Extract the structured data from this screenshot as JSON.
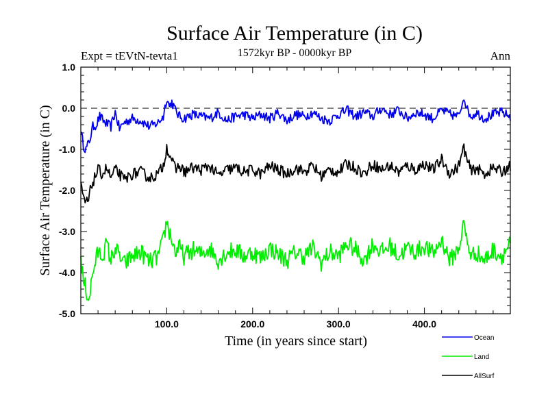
{
  "chart_data": {
    "type": "line",
    "title": "Surface Air Temperature (in C)",
    "subtitle": "1572kyr BP - 0000kyr BP",
    "left_annotation": "Expt = tEVtN-tevta1",
    "right_annotation": "Ann",
    "xlabel": "Time (in years since start)",
    "ylabel": "Surface Air Temperature (in C)",
    "xlim": [
      0,
      500
    ],
    "ylim": [
      -5.0,
      1.0
    ],
    "x_ticks": [
      100,
      200,
      300,
      400
    ],
    "x_tick_labels": [
      "100.0",
      "200.0",
      "300.0",
      "400.0"
    ],
    "y_ticks": [
      1.0,
      0.0,
      -1.0,
      -2.0,
      -3.0,
      -4.0,
      -5.0
    ],
    "y_tick_labels": [
      "1.0",
      "0.0",
      "-1.0",
      "-2.0",
      "-3.0",
      "-4.0",
      "-5.0"
    ],
    "reference_line": {
      "y": 0.0,
      "style": "dashed"
    },
    "legend_position": "bottom-right",
    "series": [
      {
        "name": "Ocean",
        "color": "#0000ee",
        "anchors": {
          "x": [
            0,
            3,
            6,
            10,
            14,
            18,
            22,
            28,
            35,
            40,
            45,
            50,
            60,
            70,
            80,
            90,
            96,
            100,
            103,
            106,
            110,
            115,
            120,
            130,
            140,
            150,
            160,
            170,
            180,
            190,
            200,
            210,
            220,
            230,
            240,
            250,
            260,
            270,
            280,
            290,
            300,
            310,
            320,
            330,
            340,
            350,
            360,
            370,
            380,
            390,
            400,
            410,
            420,
            430,
            440,
            446,
            450,
            455,
            460,
            470,
            480,
            490,
            500
          ],
          "y": [
            -0.55,
            -0.9,
            -1.0,
            -0.8,
            -0.45,
            -0.4,
            -0.2,
            -0.35,
            -0.45,
            -0.1,
            -0.5,
            -0.35,
            -0.25,
            -0.3,
            -0.45,
            -0.35,
            -0.2,
            0.25,
            0.05,
            0.15,
            -0.05,
            -0.2,
            -0.25,
            -0.15,
            -0.2,
            -0.25,
            -0.1,
            -0.3,
            -0.2,
            -0.15,
            -0.25,
            -0.15,
            -0.25,
            -0.1,
            -0.3,
            -0.15,
            -0.2,
            -0.1,
            -0.25,
            -0.3,
            -0.15,
            -0.05,
            -0.2,
            -0.1,
            -0.2,
            0.0,
            -0.15,
            -0.05,
            -0.25,
            -0.1,
            -0.15,
            -0.25,
            -0.05,
            -0.15,
            -0.2,
            0.3,
            -0.05,
            -0.2,
            -0.1,
            -0.25,
            -0.15,
            -0.1,
            -0.2
          ]
        }
      },
      {
        "name": "Land",
        "color": "#00ee00",
        "anchors": {
          "x": [
            0,
            3,
            6,
            9,
            12,
            15,
            20,
            25,
            30,
            35,
            40,
            45,
            50,
            60,
            70,
            80,
            90,
            95,
            100,
            103,
            106,
            110,
            115,
            120,
            130,
            140,
            150,
            160,
            170,
            180,
            190,
            200,
            210,
            220,
            230,
            240,
            250,
            260,
            270,
            280,
            290,
            300,
            310,
            320,
            330,
            340,
            350,
            360,
            370,
            380,
            390,
            400,
            410,
            420,
            430,
            440,
            446,
            450,
            455,
            460,
            470,
            480,
            490,
            500
          ],
          "y": [
            -3.7,
            -4.2,
            -4.4,
            -4.65,
            -4.3,
            -3.9,
            -3.5,
            -3.6,
            -3.3,
            -3.7,
            -3.4,
            -3.6,
            -3.8,
            -3.6,
            -3.5,
            -3.75,
            -3.6,
            -3.3,
            -2.75,
            -3.0,
            -3.2,
            -3.5,
            -3.4,
            -3.6,
            -3.45,
            -3.55,
            -3.4,
            -3.7,
            -3.5,
            -3.45,
            -3.6,
            -3.5,
            -3.65,
            -3.4,
            -3.55,
            -3.7,
            -3.5,
            -3.6,
            -3.4,
            -3.75,
            -3.5,
            -3.6,
            -3.3,
            -3.45,
            -3.7,
            -3.3,
            -3.5,
            -3.35,
            -3.6,
            -3.4,
            -3.5,
            -3.35,
            -3.55,
            -3.2,
            -3.7,
            -3.4,
            -2.8,
            -3.3,
            -3.6,
            -3.5,
            -3.7,
            -3.45,
            -3.6,
            -3.3
          ]
        }
      },
      {
        "name": "AllSurf",
        "color": "#000000",
        "anchors": {
          "x": [
            0,
            3,
            6,
            9,
            12,
            16,
            20,
            25,
            30,
            35,
            40,
            45,
            50,
            60,
            70,
            80,
            90,
            96,
            100,
            103,
            106,
            110,
            115,
            120,
            130,
            140,
            150,
            160,
            170,
            180,
            190,
            200,
            210,
            220,
            230,
            240,
            250,
            260,
            270,
            280,
            290,
            300,
            310,
            320,
            330,
            340,
            350,
            360,
            370,
            380,
            390,
            400,
            410,
            420,
            430,
            440,
            446,
            450,
            455,
            460,
            470,
            480,
            490,
            500
          ],
          "y": [
            -1.9,
            -2.2,
            -2.3,
            -2.25,
            -1.9,
            -1.7,
            -1.5,
            -1.6,
            -1.45,
            -1.7,
            -1.5,
            -1.6,
            -1.75,
            -1.6,
            -1.55,
            -1.7,
            -1.6,
            -1.4,
            -0.95,
            -1.1,
            -1.25,
            -1.5,
            -1.4,
            -1.55,
            -1.45,
            -1.5,
            -1.4,
            -1.65,
            -1.5,
            -1.45,
            -1.55,
            -1.5,
            -1.6,
            -1.4,
            -1.5,
            -1.6,
            -1.45,
            -1.55,
            -1.4,
            -1.65,
            -1.5,
            -1.55,
            -1.35,
            -1.45,
            -1.6,
            -1.35,
            -1.5,
            -1.4,
            -1.55,
            -1.4,
            -1.5,
            -1.35,
            -1.5,
            -1.25,
            -1.6,
            -1.4,
            -0.95,
            -1.3,
            -1.55,
            -1.45,
            -1.6,
            -1.45,
            -1.55,
            -1.4
          ]
        }
      }
    ]
  }
}
